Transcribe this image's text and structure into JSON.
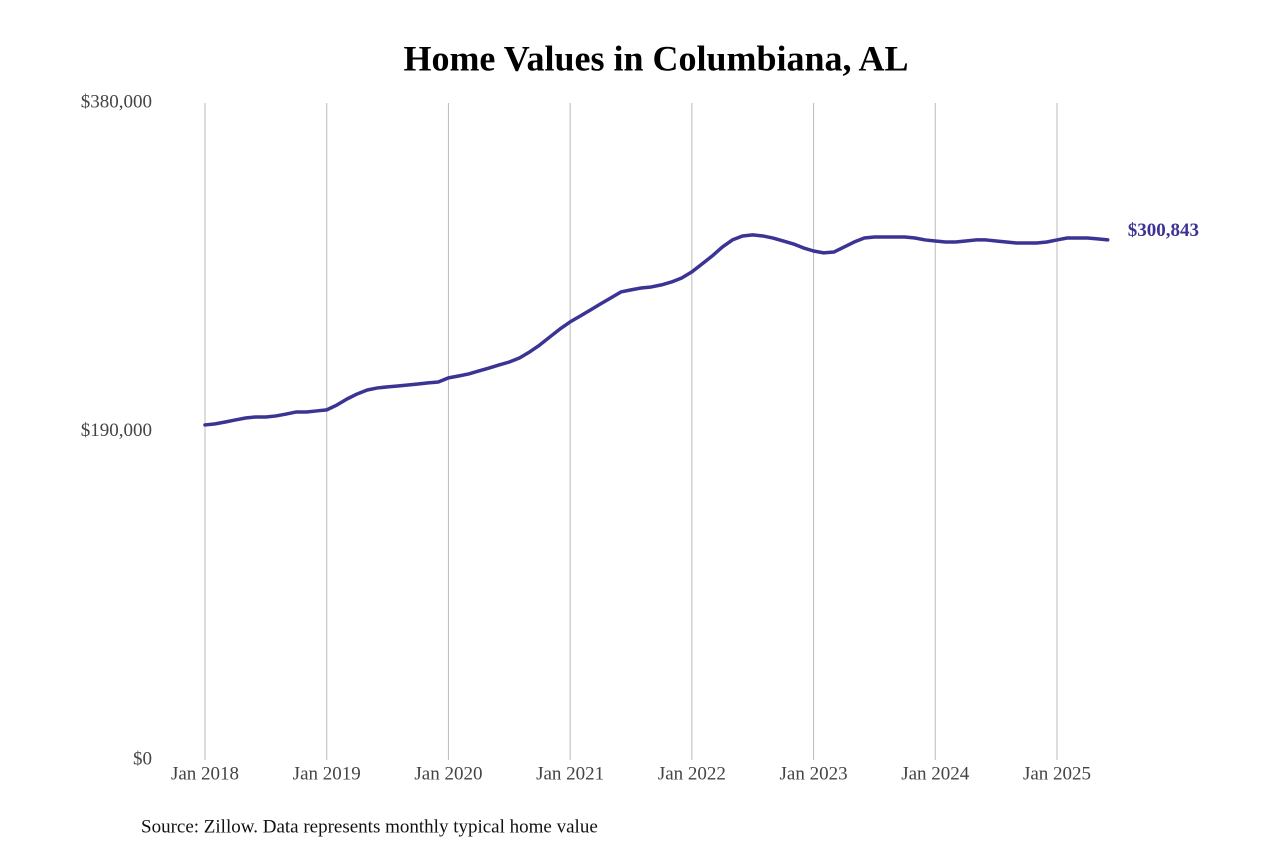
{
  "chart_data": {
    "type": "line",
    "title": "Home Values in Columbiana, AL",
    "source": "Source: Zillow. Data represents monthly typical home value",
    "x": [
      "2018-01",
      "2018-02",
      "2018-03",
      "2018-04",
      "2018-05",
      "2018-06",
      "2018-07",
      "2018-08",
      "2018-09",
      "2018-10",
      "2018-11",
      "2018-12",
      "2019-01",
      "2019-02",
      "2019-03",
      "2019-04",
      "2019-05",
      "2019-06",
      "2019-07",
      "2019-08",
      "2019-09",
      "2019-10",
      "2019-11",
      "2019-12",
      "2020-01",
      "2020-02",
      "2020-03",
      "2020-04",
      "2020-05",
      "2020-06",
      "2020-07",
      "2020-08",
      "2020-09",
      "2020-10",
      "2020-11",
      "2020-12",
      "2021-01",
      "2021-02",
      "2021-03",
      "2021-04",
      "2021-05",
      "2021-06",
      "2021-07",
      "2021-08",
      "2021-09",
      "2021-10",
      "2021-11",
      "2021-12",
      "2022-01",
      "2022-02",
      "2022-03",
      "2022-04",
      "2022-05",
      "2022-06",
      "2022-07",
      "2022-08",
      "2022-09",
      "2022-10",
      "2022-11",
      "2022-12",
      "2023-01",
      "2023-02",
      "2023-03",
      "2023-04",
      "2023-05",
      "2023-06",
      "2023-07",
      "2023-08",
      "2023-09",
      "2023-10",
      "2023-11",
      "2023-12",
      "2024-01",
      "2024-02",
      "2024-03",
      "2024-04",
      "2024-05",
      "2024-06",
      "2024-07",
      "2024-08",
      "2024-09",
      "2024-10",
      "2024-11",
      "2024-12",
      "2025-01",
      "2025-02",
      "2025-03",
      "2025-04",
      "2025-05",
      "2025-06"
    ],
    "series": [
      {
        "name": "Typical home value",
        "color": "#3b3494",
        "values": [
          193800,
          194400,
          195500,
          196700,
          197800,
          198400,
          198400,
          199000,
          200100,
          201300,
          201300,
          201900,
          202500,
          205300,
          208800,
          211700,
          214000,
          215200,
          215800,
          216300,
          216900,
          217500,
          218100,
          218600,
          221000,
          222100,
          223300,
          225000,
          226700,
          228500,
          230200,
          232500,
          236000,
          240000,
          244700,
          249300,
          253400,
          256800,
          260300,
          263800,
          267200,
          270700,
          271900,
          273000,
          273600,
          274800,
          276500,
          278800,
          282300,
          286900,
          291500,
          296700,
          300800,
          303100,
          303700,
          303100,
          301900,
          300200,
          298500,
          296200,
          294400,
          293300,
          293800,
          296700,
          299600,
          301900,
          302500,
          302500,
          302500,
          302500,
          301900,
          300800,
          300200,
          299600,
          299600,
          300200,
          300800,
          300800,
          300200,
          299600,
          299000,
          299000,
          299000,
          299600,
          300800,
          301900,
          301900,
          301900,
          301400,
          300843
        ],
        "value_labels": [
          null,
          null,
          null,
          null,
          null,
          null,
          null,
          null,
          null,
          null,
          null,
          null,
          null,
          null,
          null,
          null,
          null,
          null,
          null,
          null,
          null,
          null,
          null,
          null,
          null,
          null,
          null,
          null,
          null,
          null,
          null,
          null,
          null,
          null,
          null,
          null,
          null,
          null,
          null,
          null,
          null,
          null,
          null,
          null,
          null,
          null,
          null,
          null,
          null,
          null,
          null,
          null,
          null,
          null,
          null,
          null,
          null,
          null,
          null,
          null,
          null,
          null,
          null,
          null,
          null,
          null,
          null,
          null,
          null,
          null,
          null,
          null,
          null,
          null,
          null,
          null,
          null,
          null,
          null,
          null,
          null,
          null,
          null,
          null,
          null,
          null,
          null,
          null,
          null,
          "$300,843"
        ]
      }
    ],
    "ylim": [
      0,
      380000
    ],
    "yticks": [
      {
        "value": 0,
        "label": "$0"
      },
      {
        "value": 190000,
        "label": "$190,000"
      },
      {
        "value": 380000,
        "label": "$380,000"
      }
    ],
    "xticks": [
      {
        "value": "2018-01",
        "label": "Jan 2018"
      },
      {
        "value": "2019-01",
        "label": "Jan 2019"
      },
      {
        "value": "2020-01",
        "label": "Jan 2020"
      },
      {
        "value": "2021-01",
        "label": "Jan 2021"
      },
      {
        "value": "2022-01",
        "label": "Jan 2022"
      },
      {
        "value": "2023-01",
        "label": "Jan 2023"
      },
      {
        "value": "2024-01",
        "label": "Jan 2024"
      },
      {
        "value": "2025-01",
        "label": "Jan 2025"
      }
    ],
    "grid": "x"
  }
}
